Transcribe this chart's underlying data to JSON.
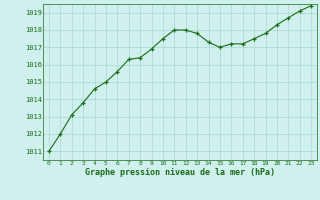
{
  "x": [
    0,
    1,
    2,
    3,
    4,
    5,
    6,
    7,
    8,
    9,
    10,
    11,
    12,
    13,
    14,
    15,
    16,
    17,
    18,
    19,
    20,
    21,
    22,
    23
  ],
  "y": [
    1011.0,
    1012.0,
    1013.1,
    1013.8,
    1014.6,
    1015.0,
    1015.6,
    1016.3,
    1016.4,
    1016.9,
    1017.5,
    1018.0,
    1018.0,
    1017.8,
    1017.3,
    1017.0,
    1017.2,
    1017.2,
    1017.5,
    1017.8,
    1018.3,
    1018.7,
    1019.1,
    1019.4
  ],
  "line_color": "#1a6b1a",
  "marker": "+",
  "marker_color": "#1a6b1a",
  "bg_color": "#cff0ec",
  "grid_color": "#a8d8d0",
  "xlabel": "Graphe pression niveau de la mer (hPa)",
  "xlabel_color": "#1a6b1a",
  "tick_color": "#1a6b1a",
  "ylim": [
    1011,
    1019
  ],
  "xlim": [
    0,
    23
  ],
  "yticks": [
    1011,
    1012,
    1013,
    1014,
    1015,
    1016,
    1017,
    1018,
    1019
  ],
  "xticks": [
    0,
    1,
    2,
    3,
    4,
    5,
    6,
    7,
    8,
    9,
    10,
    11,
    12,
    13,
    14,
    15,
    16,
    17,
    18,
    19,
    20,
    21,
    22,
    23
  ],
  "spine_color": "#1a6b1a"
}
